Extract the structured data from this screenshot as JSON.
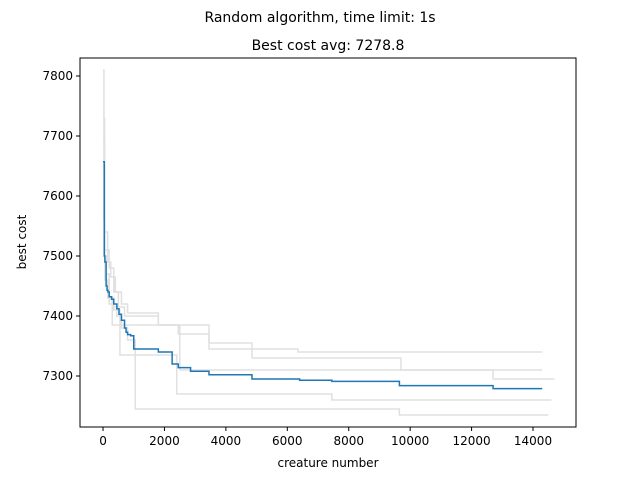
{
  "figure": {
    "suptitle": "Random algorithm, time limit: 1s"
  },
  "chart_data": {
    "type": "line",
    "title": "Best cost avg: 7278.8",
    "xlabel": "creature number",
    "ylabel": "best cost",
    "xlim": [
      -750,
      15400
    ],
    "ylim": [
      7215,
      7830
    ],
    "xticks": [
      0,
      2000,
      4000,
      6000,
      8000,
      10000,
      12000,
      14000
    ],
    "yticks": [
      7300,
      7400,
      7500,
      7600,
      7700,
      7800
    ],
    "grid": false,
    "legend": "none",
    "colors": {
      "average": "#1f77b4",
      "runs": "#e0e0e0"
    },
    "series": [
      {
        "role": "run",
        "x": [
          0,
          30,
          60,
          100,
          200,
          300,
          1000,
          2300,
          2500,
          14300
        ],
        "y": [
          7810,
          7560,
          7500,
          7470,
          7420,
          7385,
          7385,
          7385,
          7310,
          7310
        ]
      },
      {
        "role": "run",
        "x": [
          0,
          50,
          150,
          250,
          400,
          600,
          800,
          1800,
          3450,
          4850,
          6350,
          14300
        ],
        "y": [
          7730,
          7540,
          7490,
          7465,
          7440,
          7420,
          7405,
          7385,
          7355,
          7345,
          7340,
          7340
        ]
      },
      {
        "role": "run",
        "x": [
          0,
          50,
          200,
          350,
          500,
          700,
          1800,
          2450,
          3450,
          4850,
          9700,
          12700,
          14700
        ],
        "y": [
          7690,
          7510,
          7480,
          7440,
          7415,
          7400,
          7385,
          7370,
          7345,
          7330,
          7310,
          7295,
          7295
        ]
      },
      {
        "role": "run",
        "x": [
          0,
          40,
          100,
          200,
          350,
          550,
          750,
          2300,
          2400,
          7450,
          14600
        ],
        "y": [
          7650,
          7500,
          7460,
          7430,
          7410,
          7335,
          7335,
          7335,
          7270,
          7260,
          7260
        ]
      },
      {
        "role": "run",
        "x": [
          0,
          60,
          150,
          300,
          450,
          600,
          800,
          1050,
          9650,
          14500
        ],
        "y": [
          7650,
          7460,
          7430,
          7415,
          7400,
          7380,
          7360,
          7245,
          7235,
          7235
        ]
      },
      {
        "role": "average",
        "x": [
          0,
          40,
          60,
          100,
          130,
          160,
          200,
          280,
          350,
          450,
          520,
          600,
          700,
          750,
          800,
          900,
          1000,
          1800,
          2250,
          2450,
          2850,
          3450,
          4850,
          6400,
          7450,
          9650,
          12700,
          14300
        ],
        "y": [
          7657,
          7500,
          7490,
          7450,
          7443,
          7440,
          7432,
          7428,
          7420,
          7412,
          7403,
          7393,
          7380,
          7373,
          7369,
          7367,
          7345,
          7340,
          7320,
          7314,
          7308,
          7302,
          7295,
          7293,
          7291,
          7284,
          7279,
          7279
        ]
      }
    ]
  }
}
